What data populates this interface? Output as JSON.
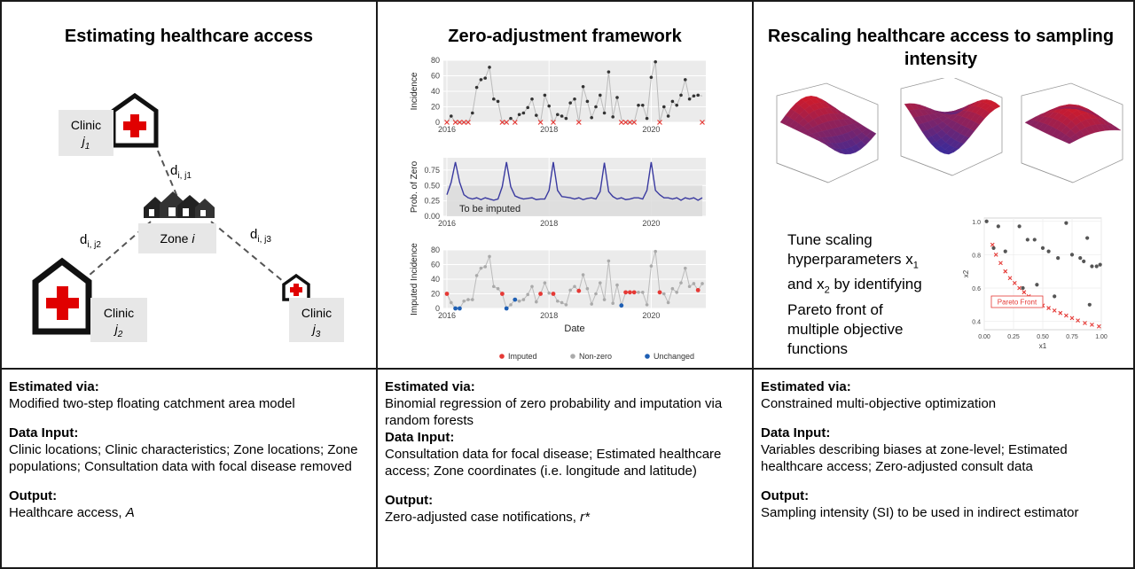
{
  "panels": [
    {
      "title": "Estimating healthcare access",
      "estimated_label": "Estimated via:",
      "estimated_text": "Modified two-step floating catchment area model",
      "data_label": "Data Input:",
      "data_text": "Clinic locations; Clinic characteristics; Zone locations; Zone populations; Consultation data with focal disease removed",
      "output_label": "Output:",
      "output_text": "Healthcare access, ",
      "output_italic": "A"
    },
    {
      "title": "Zero-adjustment framework",
      "estimated_label": "Estimated via:",
      "estimated_text": "Binomial regression of zero probability and imputation via random forests",
      "data_label": "Data Input:",
      "data_text": "Consultation data for focal disease; Estimated healthcare access; Zone coordinates (i.e. longitude and latitude)",
      "output_label": "Output:",
      "output_text": "Zero-adjusted case notifications, ",
      "output_italic": "r*"
    },
    {
      "title": "Rescaling healthcare access to sampling intensity",
      "estimated_label": "Estimated via:",
      "estimated_text": "Constrained multi-objective optimization",
      "data_label": "Data Input:",
      "data_text": "Variables describing biases at zone-level; Estimated healthcare access; Zero-adjusted consult data",
      "output_label": "Output:",
      "output_text": "Sampling intensity (SI) to be used in indirect estimator",
      "output_italic": ""
    }
  ],
  "diagram1": {
    "clinic_word": "Clinic",
    "clinic_j1": "j",
    "clinic_j1_sub": "1",
    "clinic_j2": "j",
    "clinic_j2_sub": "2",
    "clinic_j3": "j",
    "clinic_j3_sub": "3",
    "zone_word": "Zone ",
    "zone_italic": "i",
    "d_letter": "d",
    "d1_sub": "i, j1",
    "d2_sub": "i, j2",
    "d3_sub": "i, j3",
    "colors": {
      "cross": "#e00000",
      "box": "#e7e7e7",
      "line": "#555555"
    }
  },
  "chart_data": [
    {
      "type": "line",
      "ylabel": "Incidence",
      "yticks": [
        0,
        20,
        40,
        60,
        80
      ],
      "xticks": [
        "2016",
        "2018",
        "2020"
      ],
      "ylim": [
        0,
        80
      ],
      "x_start": 2016.0,
      "x_step": 0.0833,
      "values": [
        0,
        8,
        0,
        0,
        0,
        0,
        12,
        45,
        55,
        57,
        71,
        30,
        27,
        0,
        0,
        5,
        0,
        10,
        12,
        19,
        30,
        9,
        0,
        35,
        21,
        0,
        10,
        8,
        5,
        25,
        30,
        0,
        46,
        27,
        6,
        20,
        35,
        12,
        65,
        7,
        32,
        4,
        0,
        0,
        0,
        22,
        22,
        5,
        58,
        78,
        0,
        20,
        8,
        27,
        22,
        35,
        55,
        30,
        34,
        35,
        34
      ],
      "zero_markers": [
        0,
        2,
        3,
        4,
        5,
        13,
        14,
        16,
        22,
        25,
        31,
        41,
        42,
        43,
        44,
        50,
        60
      ],
      "colors": {
        "line": "#bbbbbb",
        "point": "#333333",
        "zero": "#e53935"
      }
    },
    {
      "type": "line",
      "ylabel": "Prob. of Zero",
      "yticks": [
        "0.00",
        "0.25",
        "0.50",
        "0.75"
      ],
      "xticks": [
        "2016",
        "2018",
        "2020"
      ],
      "ylim": [
        0,
        0.95
      ],
      "annotation": "To be imputed",
      "shade_top": 0.5,
      "values": [
        0.35,
        0.55,
        0.88,
        0.55,
        0.35,
        0.3,
        0.28,
        0.3,
        0.27,
        0.3,
        0.28,
        0.26,
        0.28,
        0.48,
        0.88,
        0.48,
        0.33,
        0.3,
        0.28,
        0.29,
        0.3,
        0.27,
        0.28,
        0.28,
        0.42,
        0.88,
        0.42,
        0.32,
        0.31,
        0.3,
        0.28,
        0.3,
        0.27,
        0.29,
        0.3,
        0.28,
        0.4,
        0.87,
        0.4,
        0.32,
        0.28,
        0.3,
        0.27,
        0.28,
        0.3,
        0.3,
        0.28,
        0.42,
        0.88,
        0.42,
        0.35,
        0.3,
        0.3,
        0.28,
        0.3,
        0.26,
        0.3,
        0.28,
        0.3,
        0.26,
        0.3
      ],
      "colors": {
        "line": "#3a3aa0",
        "shade": "#dcdcdc"
      }
    },
    {
      "type": "line",
      "ylabel": "Imputed Incidence",
      "xlabel": "Date",
      "yticks": [
        0,
        20,
        40,
        60,
        80
      ],
      "xticks": [
        "2016",
        "2018",
        "2020"
      ],
      "ylim": [
        0,
        80
      ],
      "values": [
        20,
        8,
        0,
        0,
        10,
        12,
        12,
        45,
        55,
        57,
        71,
        30,
        27,
        20,
        0,
        5,
        12,
        10,
        12,
        19,
        30,
        9,
        20,
        35,
        21,
        20,
        10,
        8,
        5,
        25,
        30,
        24,
        46,
        27,
        6,
        20,
        35,
        12,
        65,
        7,
        32,
        4,
        22,
        22,
        22,
        22,
        22,
        5,
        58,
        78,
        22,
        20,
        8,
        27,
        22,
        35,
        55,
        30,
        34,
        25,
        34
      ],
      "imputed_idx": [
        0,
        13,
        22,
        25,
        31,
        42,
        43,
        44,
        50,
        59
      ],
      "unchanged_idx": [
        2,
        3,
        14,
        16,
        41
      ],
      "legend": [
        "Imputed",
        "Non-zero",
        "Unchanged"
      ],
      "colors": {
        "line": "#bbbbbb",
        "imputed": "#e53935",
        "nonzero": "#aaaaaa",
        "unchanged": "#1e5fb4"
      }
    },
    {
      "type": "scatter",
      "xlabel": "x1",
      "ylabel": "x2",
      "xticks": [
        "0.00",
        "0.25",
        "0.50",
        "0.75",
        "1.00"
      ],
      "yticks": [
        "0.4",
        "0.6",
        "0.8",
        "1.0"
      ],
      "xlim": [
        0,
        1.0
      ],
      "ylim": [
        0.35,
        1.02
      ],
      "annotation": "Pareto Front",
      "points": [
        [
          0.02,
          1.0
        ],
        [
          0.08,
          0.84
        ],
        [
          0.12,
          0.97
        ],
        [
          0.18,
          0.82
        ],
        [
          0.3,
          0.97
        ],
        [
          0.37,
          0.89
        ],
        [
          0.43,
          0.89
        ],
        [
          0.5,
          0.84
        ],
        [
          0.55,
          0.82
        ],
        [
          0.63,
          0.78
        ],
        [
          0.7,
          0.99
        ],
        [
          0.75,
          0.8
        ],
        [
          0.82,
          0.78
        ],
        [
          0.85,
          0.76
        ],
        [
          0.88,
          0.9
        ],
        [
          0.92,
          0.73
        ],
        [
          0.96,
          0.73
        ],
        [
          0.99,
          0.74
        ],
        [
          0.45,
          0.62
        ],
        [
          0.6,
          0.55
        ],
        [
          0.33,
          0.6
        ],
        [
          0.9,
          0.5
        ]
      ],
      "pareto": [
        [
          0.07,
          0.86
        ],
        [
          0.1,
          0.8
        ],
        [
          0.14,
          0.75
        ],
        [
          0.18,
          0.7
        ],
        [
          0.22,
          0.66
        ],
        [
          0.26,
          0.63
        ],
        [
          0.3,
          0.6
        ],
        [
          0.34,
          0.575
        ],
        [
          0.38,
          0.55
        ],
        [
          0.42,
          0.53
        ],
        [
          0.46,
          0.51
        ],
        [
          0.5,
          0.495
        ],
        [
          0.55,
          0.48
        ],
        [
          0.6,
          0.465
        ],
        [
          0.65,
          0.45
        ],
        [
          0.7,
          0.435
        ],
        [
          0.75,
          0.42
        ],
        [
          0.8,
          0.405
        ],
        [
          0.86,
          0.39
        ],
        [
          0.92,
          0.38
        ],
        [
          0.98,
          0.37
        ]
      ],
      "colors": {
        "point": "#555555",
        "pareto": "#e53935"
      }
    }
  ],
  "tune_text": {
    "line1": "Tune scaling",
    "line2": "hyperparameters x",
    "line2_sub": "1",
    "line3a": "and x",
    "line3_sub": "2",
    "line3b": " by identifying",
    "line4": "Pareto front of",
    "line5": "multiple objective",
    "line6": "functions"
  },
  "surfaces": {
    "count": 3,
    "colors": {
      "low": "#3a2a9a",
      "high": "#d01a2a",
      "frame": "#888888"
    }
  }
}
